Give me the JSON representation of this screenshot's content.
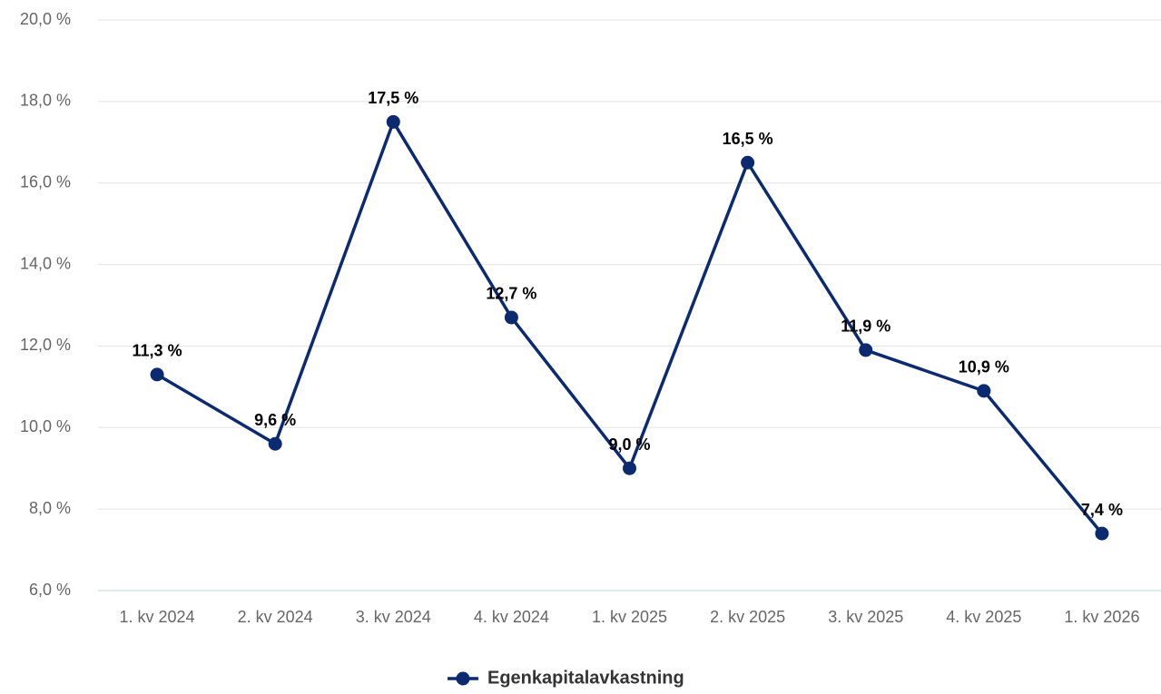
{
  "chart_data": {
    "type": "line",
    "categories": [
      "1. kv 2024",
      "2. kv 2024",
      "3. kv 2024",
      "4. kv 2024",
      "1. kv 2025",
      "2. kv 2025",
      "3. kv 2025",
      "4. kv 2025",
      "1. kv 2026"
    ],
    "series": [
      {
        "name": "Egenkapitalavkastning",
        "color": "#0b2a70",
        "values": [
          11.3,
          9.6,
          17.5,
          12.7,
          9.0,
          16.5,
          11.9,
          10.9,
          7.4
        ],
        "value_labels": [
          "11,3 %",
          "9,6 %",
          "17,5 %",
          "12,7 %",
          "9,0 %",
          "16,5 %",
          "11,9 %",
          "10,9 %",
          "7,4 %"
        ]
      }
    ],
    "ylim": [
      6,
      20
    ],
    "yticks": [
      {
        "value": 6,
        "label": "6,0 %"
      },
      {
        "value": 8,
        "label": "8,0 %"
      },
      {
        "value": 10,
        "label": "10,0 %"
      },
      {
        "value": 12,
        "label": "12,0 %"
      },
      {
        "value": 14,
        "label": "14,0 %"
      },
      {
        "value": 16,
        "label": "16,0 %"
      },
      {
        "value": 18,
        "label": "18,0 %"
      },
      {
        "value": 20,
        "label": "20,0 %"
      }
    ],
    "grid": true,
    "legend": "bottom"
  }
}
